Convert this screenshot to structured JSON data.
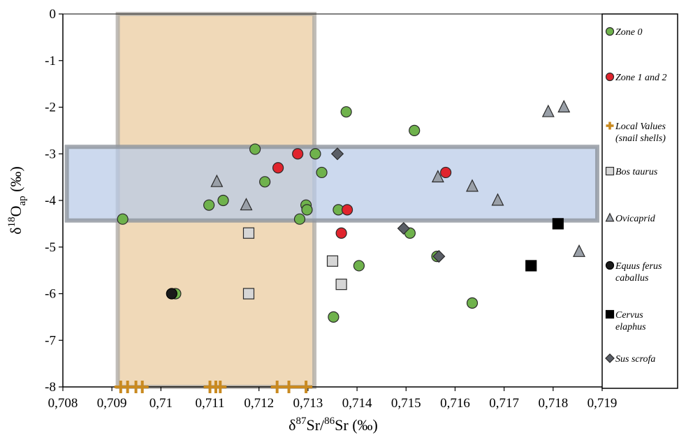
{
  "chart_data": {
    "type": "scatter",
    "xlabel": {
      "base": "δ",
      "sup1": "87",
      "mid": "Sr/",
      "sup2": "86",
      "end": "Sr (‰)"
    },
    "ylabel": {
      "base": "δ",
      "sup": "18",
      "mid": "O",
      "sub": "ap",
      "end": " (‰)"
    },
    "xlim": [
      0.708,
      0.719
    ],
    "ylim": [
      -8,
      0
    ],
    "x_ticks": [
      {
        "value": 0.708,
        "label": "0,708"
      },
      {
        "value": 0.709,
        "label": "0,709"
      },
      {
        "value": 0.71,
        "label": "0,71"
      },
      {
        "value": 0.711,
        "label": "0,711"
      },
      {
        "value": 0.712,
        "label": "0,712"
      },
      {
        "value": 0.713,
        "label": "0,713"
      },
      {
        "value": 0.714,
        "label": "0,714"
      },
      {
        "value": 0.715,
        "label": "0,715"
      },
      {
        "value": 0.716,
        "label": "0,716"
      },
      {
        "value": 0.717,
        "label": "0,717"
      },
      {
        "value": 0.718,
        "label": "0,718"
      },
      {
        "value": 0.719,
        "label": "0,719"
      }
    ],
    "y_ticks": [
      {
        "value": 0,
        "label": "0"
      },
      {
        "value": -1,
        "label": "-1"
      },
      {
        "value": -2,
        "label": "-2"
      },
      {
        "value": -3,
        "label": "-3"
      },
      {
        "value": -4,
        "label": "-4"
      },
      {
        "value": -5,
        "label": "-5"
      },
      {
        "value": -6,
        "label": "-6"
      },
      {
        "value": -7,
        "label": "-7"
      },
      {
        "value": -8,
        "label": "-8"
      }
    ],
    "grid": false,
    "legend_position": "right",
    "shaded_regions": [
      {
        "x": [
          0.70912,
          0.71313
        ],
        "y": [
          -8,
          0
        ],
        "fill": "#f0d9b8",
        "stroke": "#b0aca8"
      },
      {
        "x": [
          0.70808,
          0.7189
        ],
        "y": [
          -4.43,
          -2.85
        ],
        "fill": "#b9cbe8",
        "stroke": "#8f959e"
      }
    ],
    "series": [
      {
        "name": "Zone 0",
        "marker": "circle",
        "color": "#6fb24c",
        "stroke": "#2a2a2a",
        "points": [
          {
            "x": 0.70922,
            "y": -4.4
          },
          {
            "x": 0.7103,
            "y": -6.0
          },
          {
            "x": 0.71098,
            "y": -4.1
          },
          {
            "x": 0.71127,
            "y": -4.0
          },
          {
            "x": 0.71192,
            "y": -2.9
          },
          {
            "x": 0.71212,
            "y": -3.6
          },
          {
            "x": 0.71283,
            "y": -4.4
          },
          {
            "x": 0.71296,
            "y": -4.1
          },
          {
            "x": 0.71298,
            "y": -4.2
          },
          {
            "x": 0.71315,
            "y": -3.0
          },
          {
            "x": 0.71328,
            "y": -3.4
          },
          {
            "x": 0.71362,
            "y": -4.2
          },
          {
            "x": 0.71378,
            "y": -2.1
          },
          {
            "x": 0.71352,
            "y": -6.5
          },
          {
            "x": 0.71404,
            "y": -5.4
          },
          {
            "x": 0.71508,
            "y": -4.7
          },
          {
            "x": 0.71517,
            "y": -2.5
          },
          {
            "x": 0.71563,
            "y": -5.2
          },
          {
            "x": 0.71635,
            "y": -6.2
          }
        ]
      },
      {
        "name": "Zone 1 and 2",
        "marker": "circle",
        "color": "#e0242d",
        "stroke": "#2a2a2a",
        "points": [
          {
            "x": 0.71279,
            "y": -3.0
          },
          {
            "x": 0.71239,
            "y": -3.3
          },
          {
            "x": 0.71368,
            "y": -4.7
          },
          {
            "x": 0.7138,
            "y": -4.2
          },
          {
            "x": 0.71581,
            "y": -3.4
          }
        ]
      },
      {
        "name": "Local Values (snail shells)",
        "marker": "plus",
        "color": "#c98a20",
        "points": [
          {
            "x": 0.70918,
            "y": -8
          },
          {
            "x": 0.70932,
            "y": -8
          },
          {
            "x": 0.70949,
            "y": -8
          },
          {
            "x": 0.70962,
            "y": -8
          },
          {
            "x": 0.711,
            "y": -8
          },
          {
            "x": 0.71112,
            "y": -8
          },
          {
            "x": 0.71121,
            "y": -8
          },
          {
            "x": 0.71237,
            "y": -8
          },
          {
            "x": 0.71261,
            "y": -8
          },
          {
            "x": 0.71296,
            "y": -8
          }
        ]
      },
      {
        "name": "Bos taurus",
        "marker": "square",
        "color": "#d6d6d6",
        "stroke": "#2a2a2a",
        "points": [
          {
            "x": 0.71179,
            "y": -4.7
          },
          {
            "x": 0.71179,
            "y": -6.0
          },
          {
            "x": 0.7135,
            "y": -5.3
          },
          {
            "x": 0.71368,
            "y": -5.8
          }
        ]
      },
      {
        "name": "Ovicaprid",
        "marker": "triangle",
        "color": "#9aa0a8",
        "stroke": "#2a2a2a",
        "points": [
          {
            "x": 0.71114,
            "y": -3.6
          },
          {
            "x": 0.71174,
            "y": -4.1
          },
          {
            "x": 0.71565,
            "y": -3.5
          },
          {
            "x": 0.71635,
            "y": -3.7
          },
          {
            "x": 0.71687,
            "y": -4.0
          },
          {
            "x": 0.7179,
            "y": -2.1
          },
          {
            "x": 0.71822,
            "y": -2.0
          },
          {
            "x": 0.71853,
            "y": -5.1
          }
        ]
      },
      {
        "name": "Equus ferus caballus",
        "marker": "circle",
        "color": "#1a1a1a",
        "stroke": "#000000",
        "points": [
          {
            "x": 0.71022,
            "y": -6.0
          }
        ]
      },
      {
        "name": "Cervus elaphus",
        "marker": "square",
        "color": "#000000",
        "stroke": "#000000",
        "points": [
          {
            "x": 0.71755,
            "y": -5.4
          },
          {
            "x": 0.7181,
            "y": -4.5
          }
        ]
      },
      {
        "name": "Sus scrofa",
        "marker": "diamond",
        "color": "#5a5e66",
        "stroke": "#2a2a2a",
        "points": [
          {
            "x": 0.7136,
            "y": -3.0
          },
          {
            "x": 0.71495,
            "y": -4.6
          },
          {
            "x": 0.71567,
            "y": -5.2
          }
        ]
      }
    ],
    "legend": [
      {
        "marker": "circle",
        "color": "#6fb24c",
        "stroke": "#2a2a2a",
        "lines": [
          "Zone 0"
        ]
      },
      {
        "marker": "circle",
        "color": "#e0242d",
        "stroke": "#2a2a2a",
        "lines": [
          "Zone 1 and 2"
        ]
      },
      {
        "marker": "plus",
        "color": "#c98a20",
        "stroke": "#c98a20",
        "lines": [
          "Local Values",
          "(snail shells)"
        ]
      },
      {
        "marker": "square",
        "color": "#d6d6d6",
        "stroke": "#2a2a2a",
        "lines": [
          "Bos taurus"
        ]
      },
      {
        "marker": "triangle",
        "color": "#9aa0a8",
        "stroke": "#2a2a2a",
        "lines": [
          "Ovicaprid"
        ]
      },
      {
        "marker": "circle",
        "color": "#1a1a1a",
        "stroke": "#000000",
        "lines": [
          "Equus ferus",
          "caballus"
        ]
      },
      {
        "marker": "square",
        "color": "#000000",
        "stroke": "#000000",
        "lines": [
          "Cervus",
          "elaphus"
        ]
      },
      {
        "marker": "diamond",
        "color": "#5a5e66",
        "stroke": "#2a2a2a",
        "lines": [
          "Sus scrofa"
        ]
      }
    ]
  }
}
